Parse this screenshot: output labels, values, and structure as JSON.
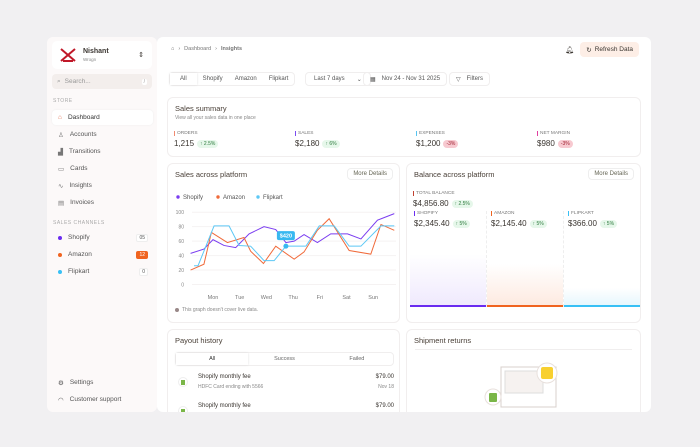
{
  "sidebar": {
    "org": "Nishant",
    "org_sub": "Wrogn",
    "search_placeholder": "Search...",
    "search_key": "/",
    "store_label": "STORE",
    "items": [
      {
        "label": "Dashboard",
        "icon": "home-icon"
      },
      {
        "label": "Accounts",
        "icon": "user-icon"
      },
      {
        "label": "Transitions",
        "icon": "chart-icon"
      },
      {
        "label": "Cards",
        "icon": "card-icon"
      },
      {
        "label": "Insights",
        "icon": "trend-icon"
      },
      {
        "label": "Invoices",
        "icon": "invoice-icon"
      }
    ],
    "channels_label": "SALES CHANNELS",
    "channels": [
      {
        "label": "Shopify",
        "count": "05",
        "color": "#6a2cf0"
      },
      {
        "label": "Amazon",
        "count": "12",
        "color": "#f06420"
      },
      {
        "label": "Flipkart",
        "count": "0",
        "color": "#38c0f5"
      }
    ],
    "settings": "Settings",
    "support": "Customer support"
  },
  "header": {
    "breadcrumb": [
      "Dashboard",
      "Insights"
    ],
    "refresh": "Refresh Data"
  },
  "filters": {
    "platforms": [
      "All",
      "Shopify",
      "Amazon",
      "Flipkart"
    ],
    "range": "Last 7 days",
    "dates": "Nov 24 - Nov 31 2025",
    "filters": "Filters"
  },
  "summary": {
    "title": "Sales summary",
    "subtitle": "View all your sales data in one place",
    "metrics": [
      {
        "label": "ORDERS",
        "value": "1,215",
        "change": "↑ 2.5%",
        "dir": "up",
        "color": "#f08a70"
      },
      {
        "label": "SALES",
        "value": "$2,180",
        "change": "↑ 6%",
        "dir": "up",
        "color": "#7a4cf0"
      },
      {
        "label": "EXPENSES",
        "value": "$1,200",
        "change": "-3%",
        "dir": "down",
        "color": "#58c4f0"
      },
      {
        "label": "NET MARGIN",
        "value": "$980",
        "change": "-3%",
        "dir": "down",
        "color": "#e040a0"
      }
    ]
  },
  "sales_chart": {
    "title": "Sales across platform",
    "more": "More Details",
    "note": "This graph doesn't cover live data.",
    "tooltip": "$420"
  },
  "balance": {
    "title": "Balance across platform",
    "more": "More Details",
    "total_label": "TOTAL BALANCE",
    "total": "$4,856.80",
    "total_change": "↑ 2.5%",
    "platforms": [
      {
        "label": "SHOPIFY",
        "value": "$2,345.40",
        "change": "↑ 5%",
        "color": "#6a2cf0",
        "fill": "#efe9fd",
        "level": 0.55
      },
      {
        "label": "AMAZON",
        "value": "$2,145.40",
        "change": "↑ 5%",
        "color": "#f06420",
        "fill": "#fde9df",
        "level": 0.45
      },
      {
        "label": "FLIPKART",
        "value": "$366.00",
        "change": "↑ 5%",
        "color": "#38c0f5",
        "fill": "#e4f6fd",
        "level": 0.2
      }
    ]
  },
  "payout": {
    "title": "Payout history",
    "tabs": [
      "All",
      "Success",
      "Failed"
    ],
    "items": [
      {
        "title": "Shopify monthly fee",
        "sub": "HDFC Card ending with 5566",
        "amount": "$79.00",
        "date": "Nov 18"
      },
      {
        "title": "Shopify monthly fee",
        "sub": "",
        "amount": "$79.00",
        "date": ""
      }
    ]
  },
  "returns": {
    "title": "Shipment returns"
  },
  "chart_data": {
    "type": "line",
    "xticks": [
      "Mon",
      "Tue",
      "Wed",
      "Thu",
      "Fri",
      "Sat",
      "Sun"
    ],
    "ylim": [
      0,
      100
    ],
    "yticks": [
      0,
      20,
      40,
      60,
      80,
      100
    ],
    "legend": "top-left",
    "series": [
      {
        "name": "Shopify",
        "color": "#7a3cf0",
        "points": [
          [
            -0.84,
            43
          ],
          [
            -0.34,
            49
          ],
          [
            0,
            62
          ],
          [
            0.41,
            54
          ],
          [
            0.85,
            51
          ],
          [
            1.35,
            70
          ],
          [
            1.91,
            80
          ],
          [
            2.35,
            76
          ],
          [
            2.73,
            58
          ],
          [
            3.04,
            60
          ],
          [
            3.41,
            69
          ],
          [
            3.91,
            58
          ],
          [
            4.41,
            70
          ],
          [
            5.04,
            70
          ],
          [
            5.54,
            63
          ],
          [
            6.16,
            89
          ],
          [
            6.79,
            98
          ]
        ]
      },
      {
        "name": "Amazon",
        "color": "#f06a3a",
        "points": [
          [
            -0.84,
            20
          ],
          [
            -0.34,
            28
          ],
          [
            -0.06,
            72
          ],
          [
            0.54,
            58
          ],
          [
            1.16,
            65
          ],
          [
            1.41,
            46
          ],
          [
            1.89,
            29
          ],
          [
            2.35,
            53
          ],
          [
            3.04,
            35
          ],
          [
            3.41,
            45
          ],
          [
            3.91,
            75
          ],
          [
            4.35,
            91
          ],
          [
            5.1,
            47
          ],
          [
            5.91,
            42
          ],
          [
            6.29,
            83
          ],
          [
            6.79,
            75
          ]
        ]
      },
      {
        "name": "Flipkart",
        "color": "#5cc8f5",
        "points": [
          [
            -0.71,
            26
          ],
          [
            -0.56,
            26
          ],
          [
            0.04,
            81
          ],
          [
            0.6,
            81
          ],
          [
            0.98,
            54
          ],
          [
            1.41,
            53
          ],
          [
            1.91,
            33
          ],
          [
            2.29,
            33
          ],
          [
            2.73,
            53
          ],
          [
            3.48,
            53
          ],
          [
            3.98,
            81
          ],
          [
            4.54,
            81
          ],
          [
            5.1,
            53
          ],
          [
            5.54,
            53
          ],
          [
            6.29,
            81
          ],
          [
            6.79,
            81
          ]
        ]
      }
    ],
    "tooltip_point": {
      "series": "Flipkart",
      "x": 2.73,
      "y": 53
    }
  }
}
